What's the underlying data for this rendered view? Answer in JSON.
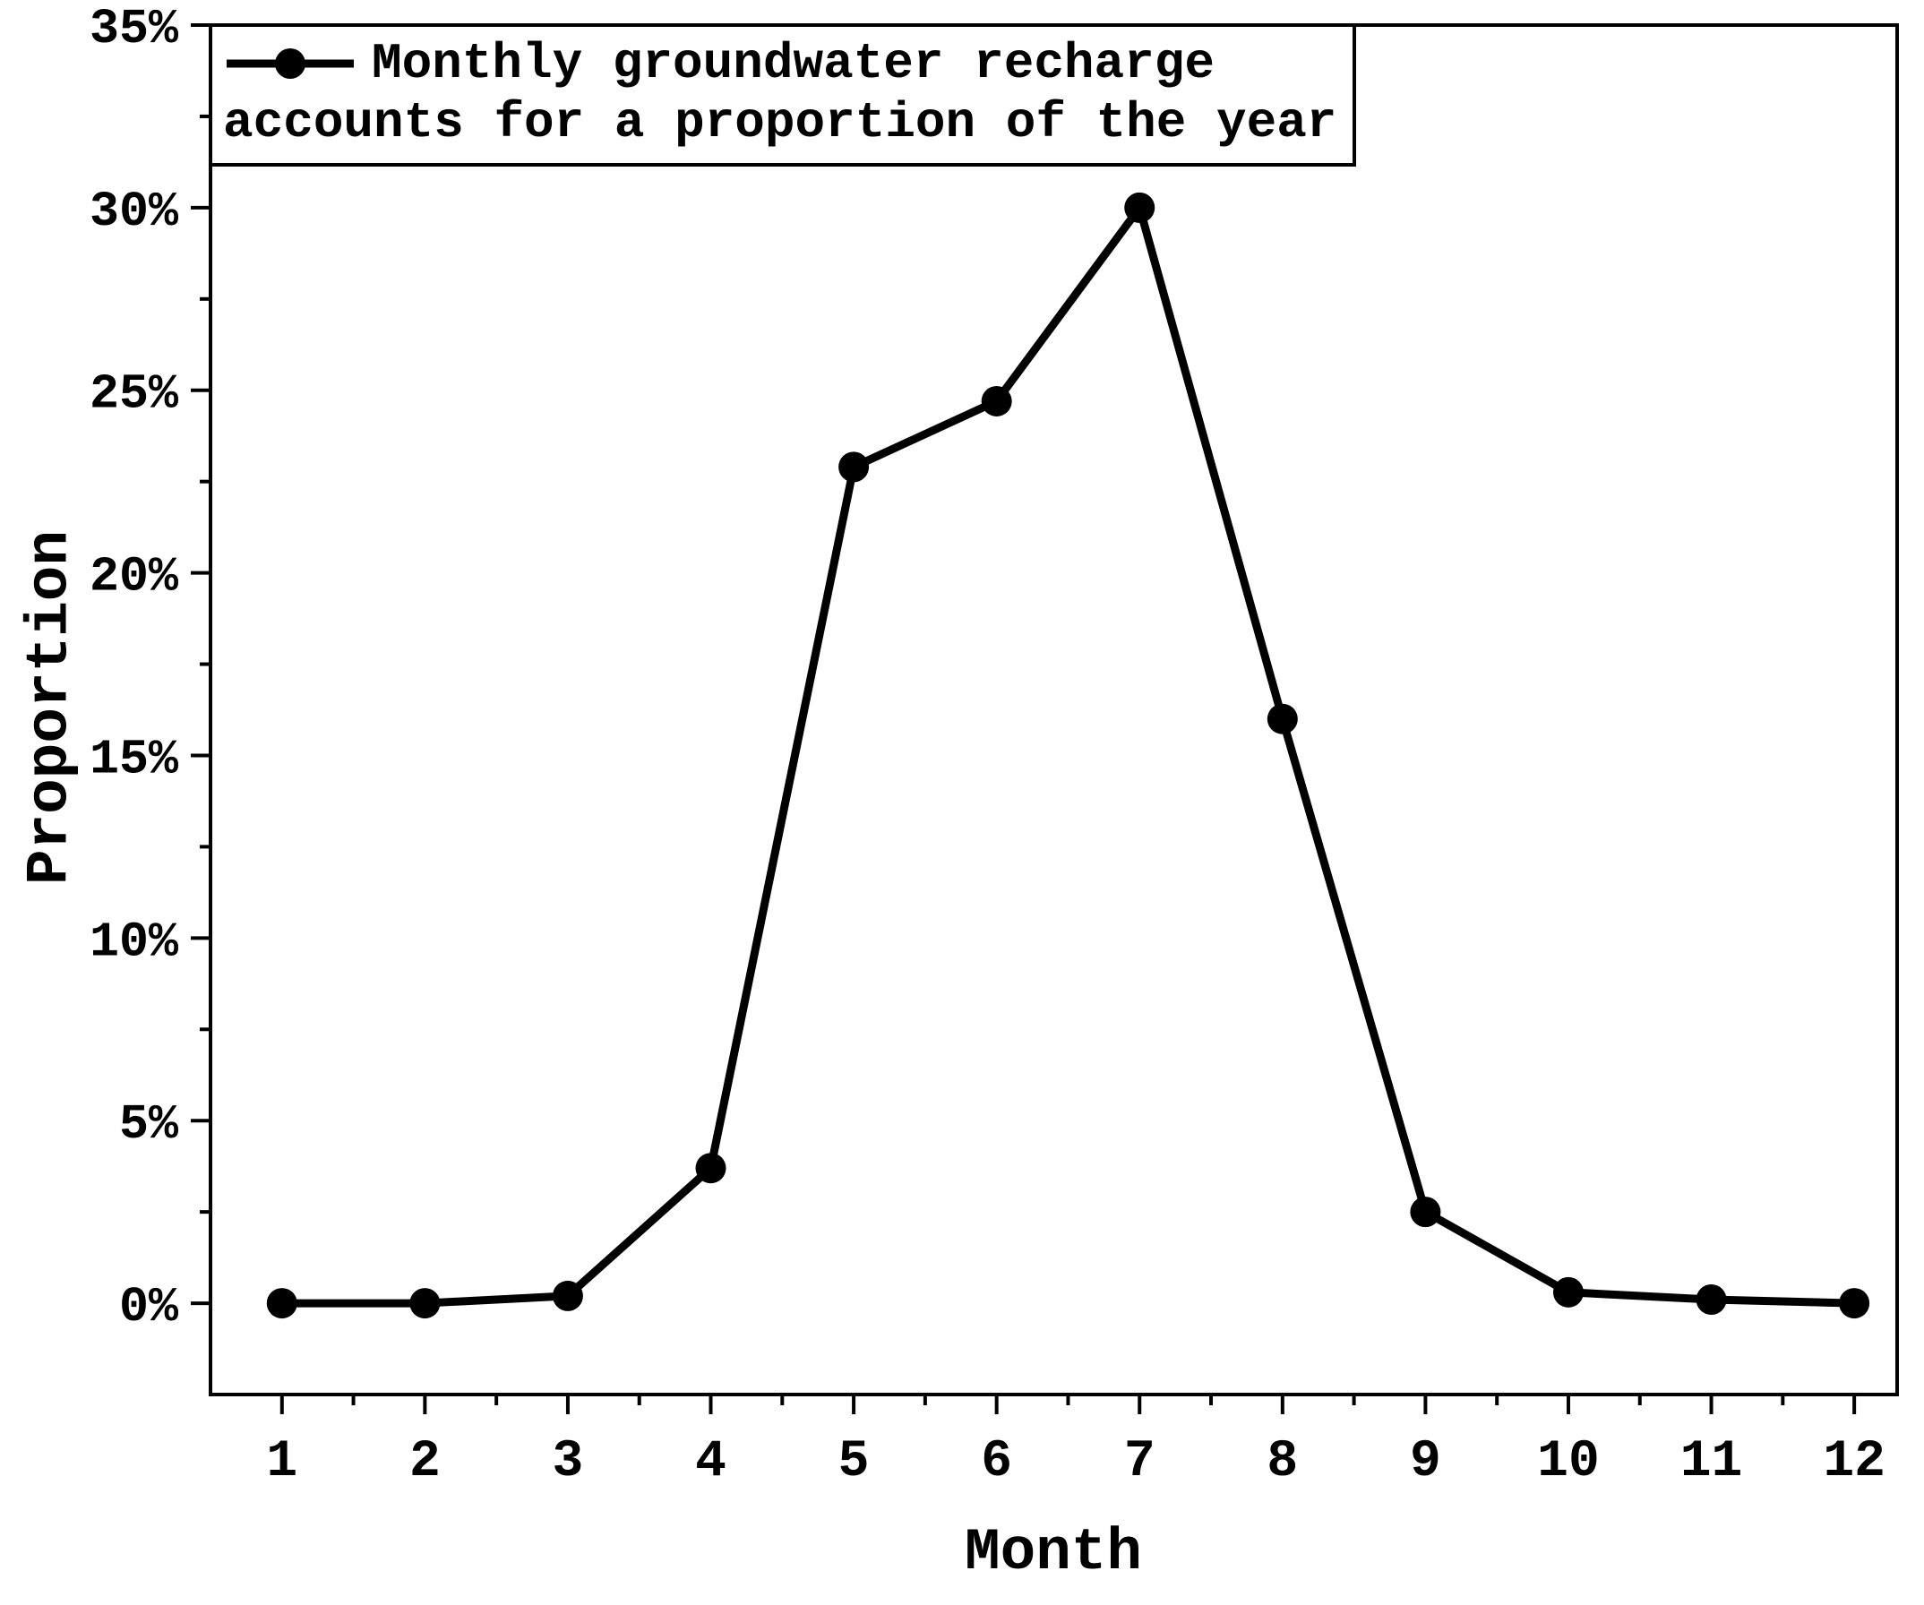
{
  "chart_data": {
    "type": "line",
    "title": "",
    "xlabel": "Month",
    "ylabel": "Proportion",
    "x": [
      1,
      2,
      3,
      4,
      5,
      6,
      7,
      8,
      9,
      10,
      11,
      12
    ],
    "series": [
      {
        "name": "Monthly groundwater recharge accounts for a proportion of the year",
        "values": [
          0.0,
          0.0,
          0.2,
          3.7,
          22.9,
          24.7,
          30.0,
          16.0,
          2.5,
          0.3,
          0.1,
          0.0
        ]
      }
    ],
    "y_ticks": [
      0,
      5,
      10,
      15,
      20,
      25,
      30,
      35
    ],
    "y_tick_labels": [
      "0%",
      "5%",
      "10%",
      "15%",
      "20%",
      "25%",
      "30%",
      "35%"
    ],
    "ylim": [
      -2.5,
      35
    ],
    "xlim": [
      0.5,
      12.3
    ],
    "grid": false,
    "legend": {
      "position": "top-left",
      "line1": "Monthly groundwater recharge",
      "line2": "accounts for a proportion of the year"
    },
    "colors": {
      "line": "#000000",
      "marker": "#000000",
      "axis": "#000000",
      "background": "#ffffff"
    },
    "style": {
      "line_width": 9,
      "marker_radius": 17,
      "axis_width": 4
    }
  }
}
